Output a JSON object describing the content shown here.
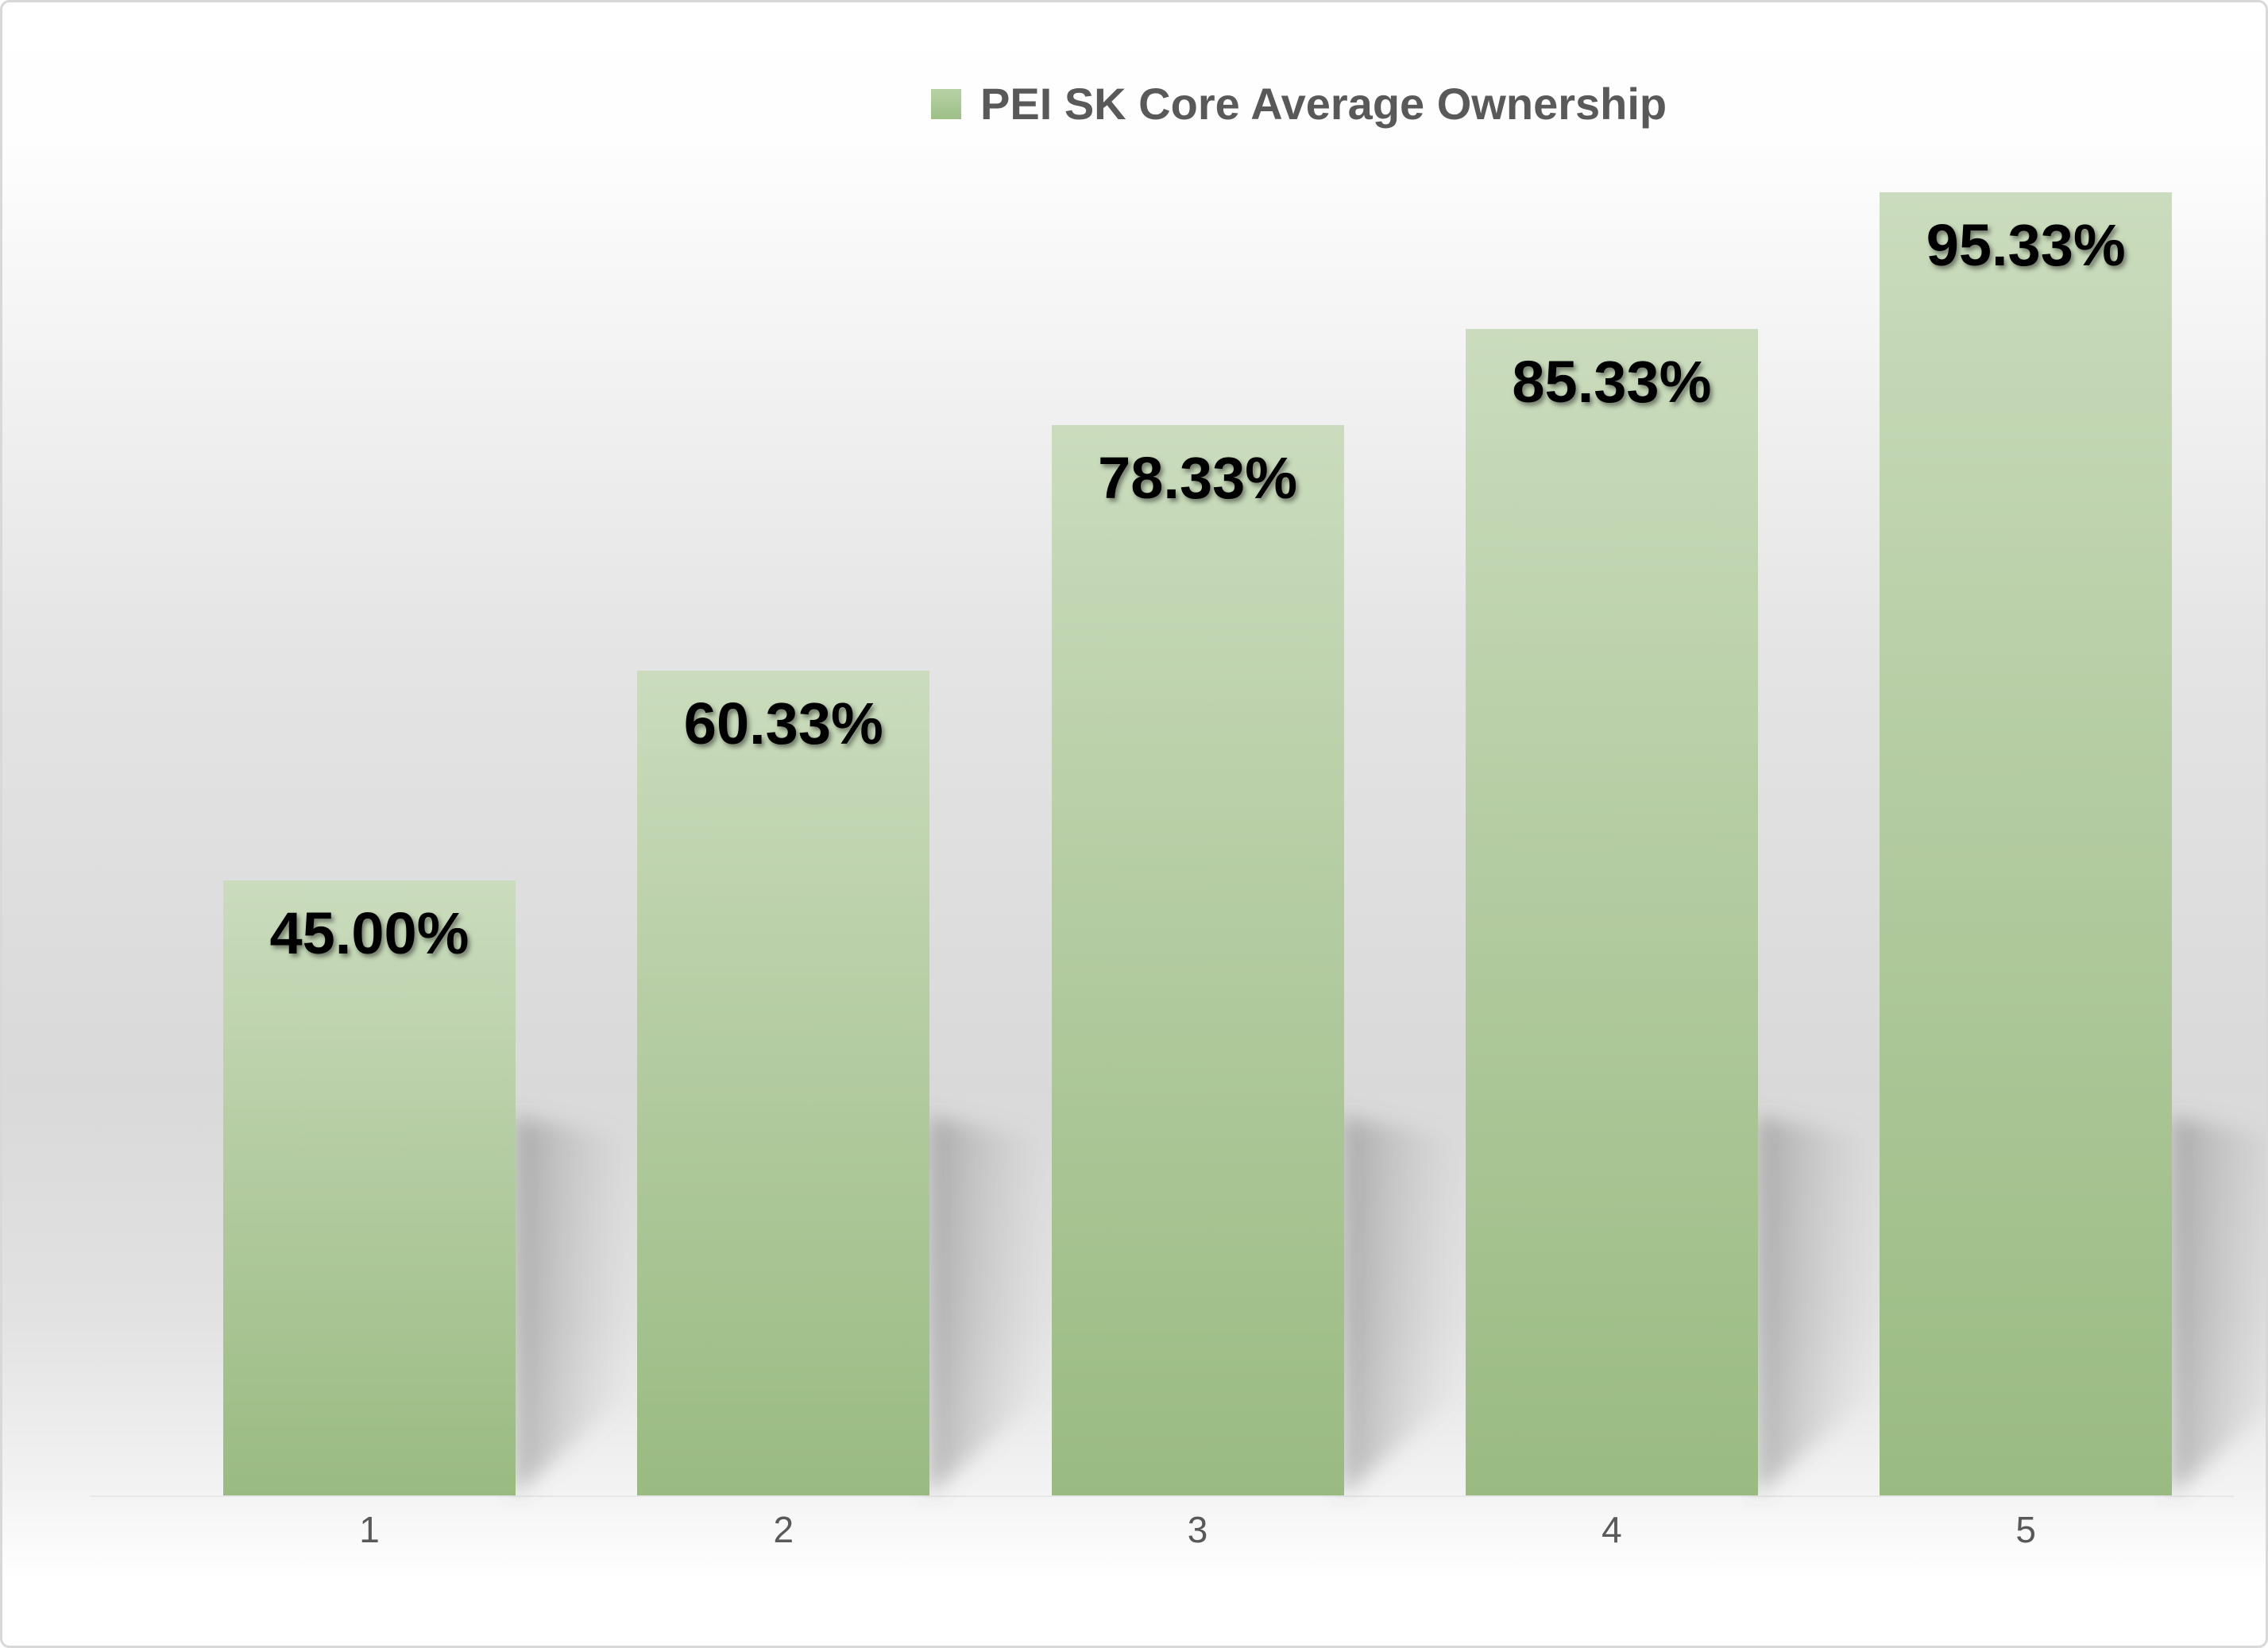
{
  "legend": {
    "label": "PEI SK Core Average Ownership",
    "marker": "green-square-swatch"
  },
  "colors": {
    "title_color": "#595959",
    "tick_color": "#595959",
    "label_color": "#000000",
    "border_color": "#d8d8d8",
    "swatch_top": "#b6d2a5",
    "swatch_bottom": "#9dc086",
    "bar_gradient_top": "#cadcbd",
    "bar_gradient_mid": "#b3cba0",
    "bar_gradient_bottom": "#99bb81",
    "background_mid_gray": "#d9d9d9"
  },
  "chart_data": {
    "type": "bar",
    "series_name": "PEI SK Core Average Ownership",
    "categories": [
      "1",
      "2",
      "3",
      "4",
      "5"
    ],
    "values": [
      45.0,
      60.33,
      78.33,
      85.33,
      95.33
    ],
    "labels": [
      "45.00%",
      "60.33%",
      "78.33%",
      "85.33%",
      "95.33%"
    ],
    "title": "",
    "xlabel": "",
    "ylabel": "",
    "ylim": [
      0,
      100
    ],
    "grid": false,
    "y_axis_visible": false,
    "legend_position": "top",
    "data_labels": "inside-end",
    "bar_effects": [
      "gradient-fill",
      "perspective-shadow-right"
    ]
  }
}
